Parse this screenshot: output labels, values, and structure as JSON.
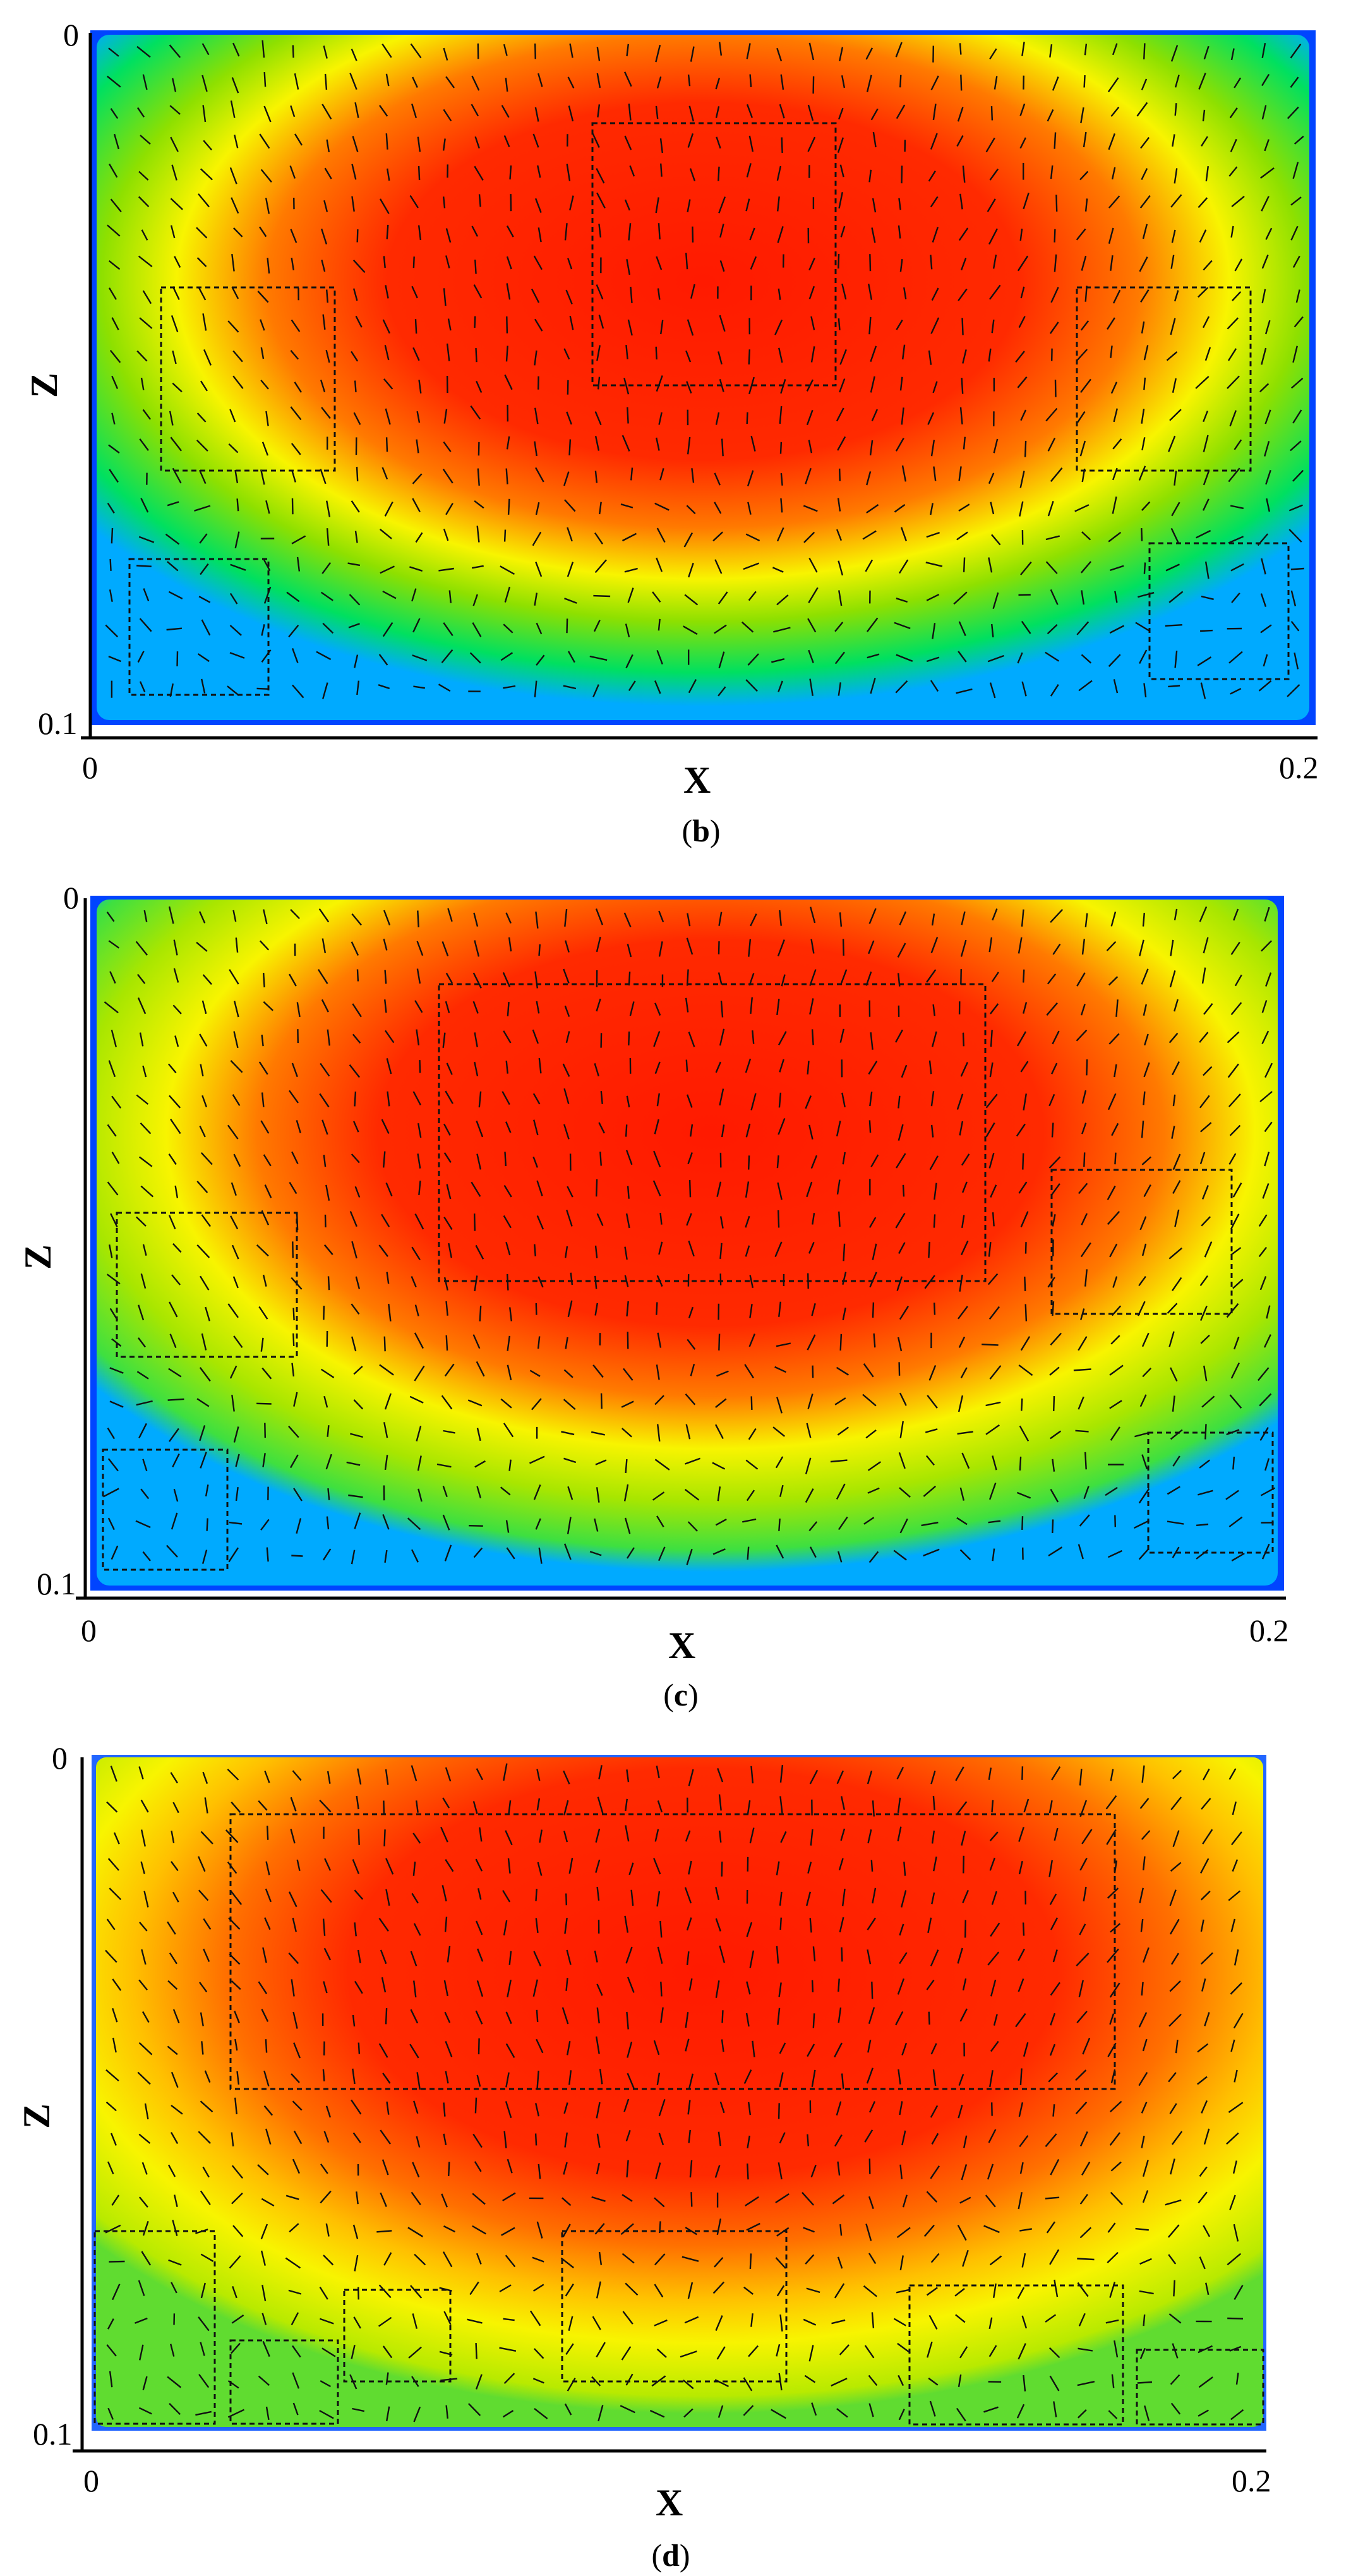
{
  "colors": {
    "colormap": [
      "#0033ff",
      "#00aaff",
      "#00e060",
      "#8ee000",
      "#f8f400",
      "#ffb000",
      "#ff6000",
      "#ff1a00"
    ],
    "box_stroke": "#111111",
    "vector_stroke": "#111111",
    "axis": "#000000"
  },
  "panels": [
    {
      "id": "b",
      "caption_open": "(",
      "caption_letter": "b",
      "caption_close": ")",
      "x_axis_label": "X",
      "z_axis_label": "Z",
      "x_ticks": [
        "0",
        "0.2"
      ],
      "z_ticks": [
        "0",
        "0.1"
      ]
    },
    {
      "id": "c",
      "caption_open": "(",
      "caption_letter": "c",
      "caption_close": ")",
      "x_axis_label": "X",
      "z_axis_label": "Z",
      "x_ticks": [
        "0",
        "0.2"
      ],
      "z_ticks": [
        "0",
        "0.1"
      ]
    },
    {
      "id": "d",
      "caption_open": "(",
      "caption_letter": "d",
      "caption_close": ")",
      "x_axis_label": "X",
      "z_axis_label": "Z",
      "x_ticks": [
        "0",
        "0.2"
      ],
      "z_ticks": [
        "0",
        "0.1"
      ]
    }
  ]
}
